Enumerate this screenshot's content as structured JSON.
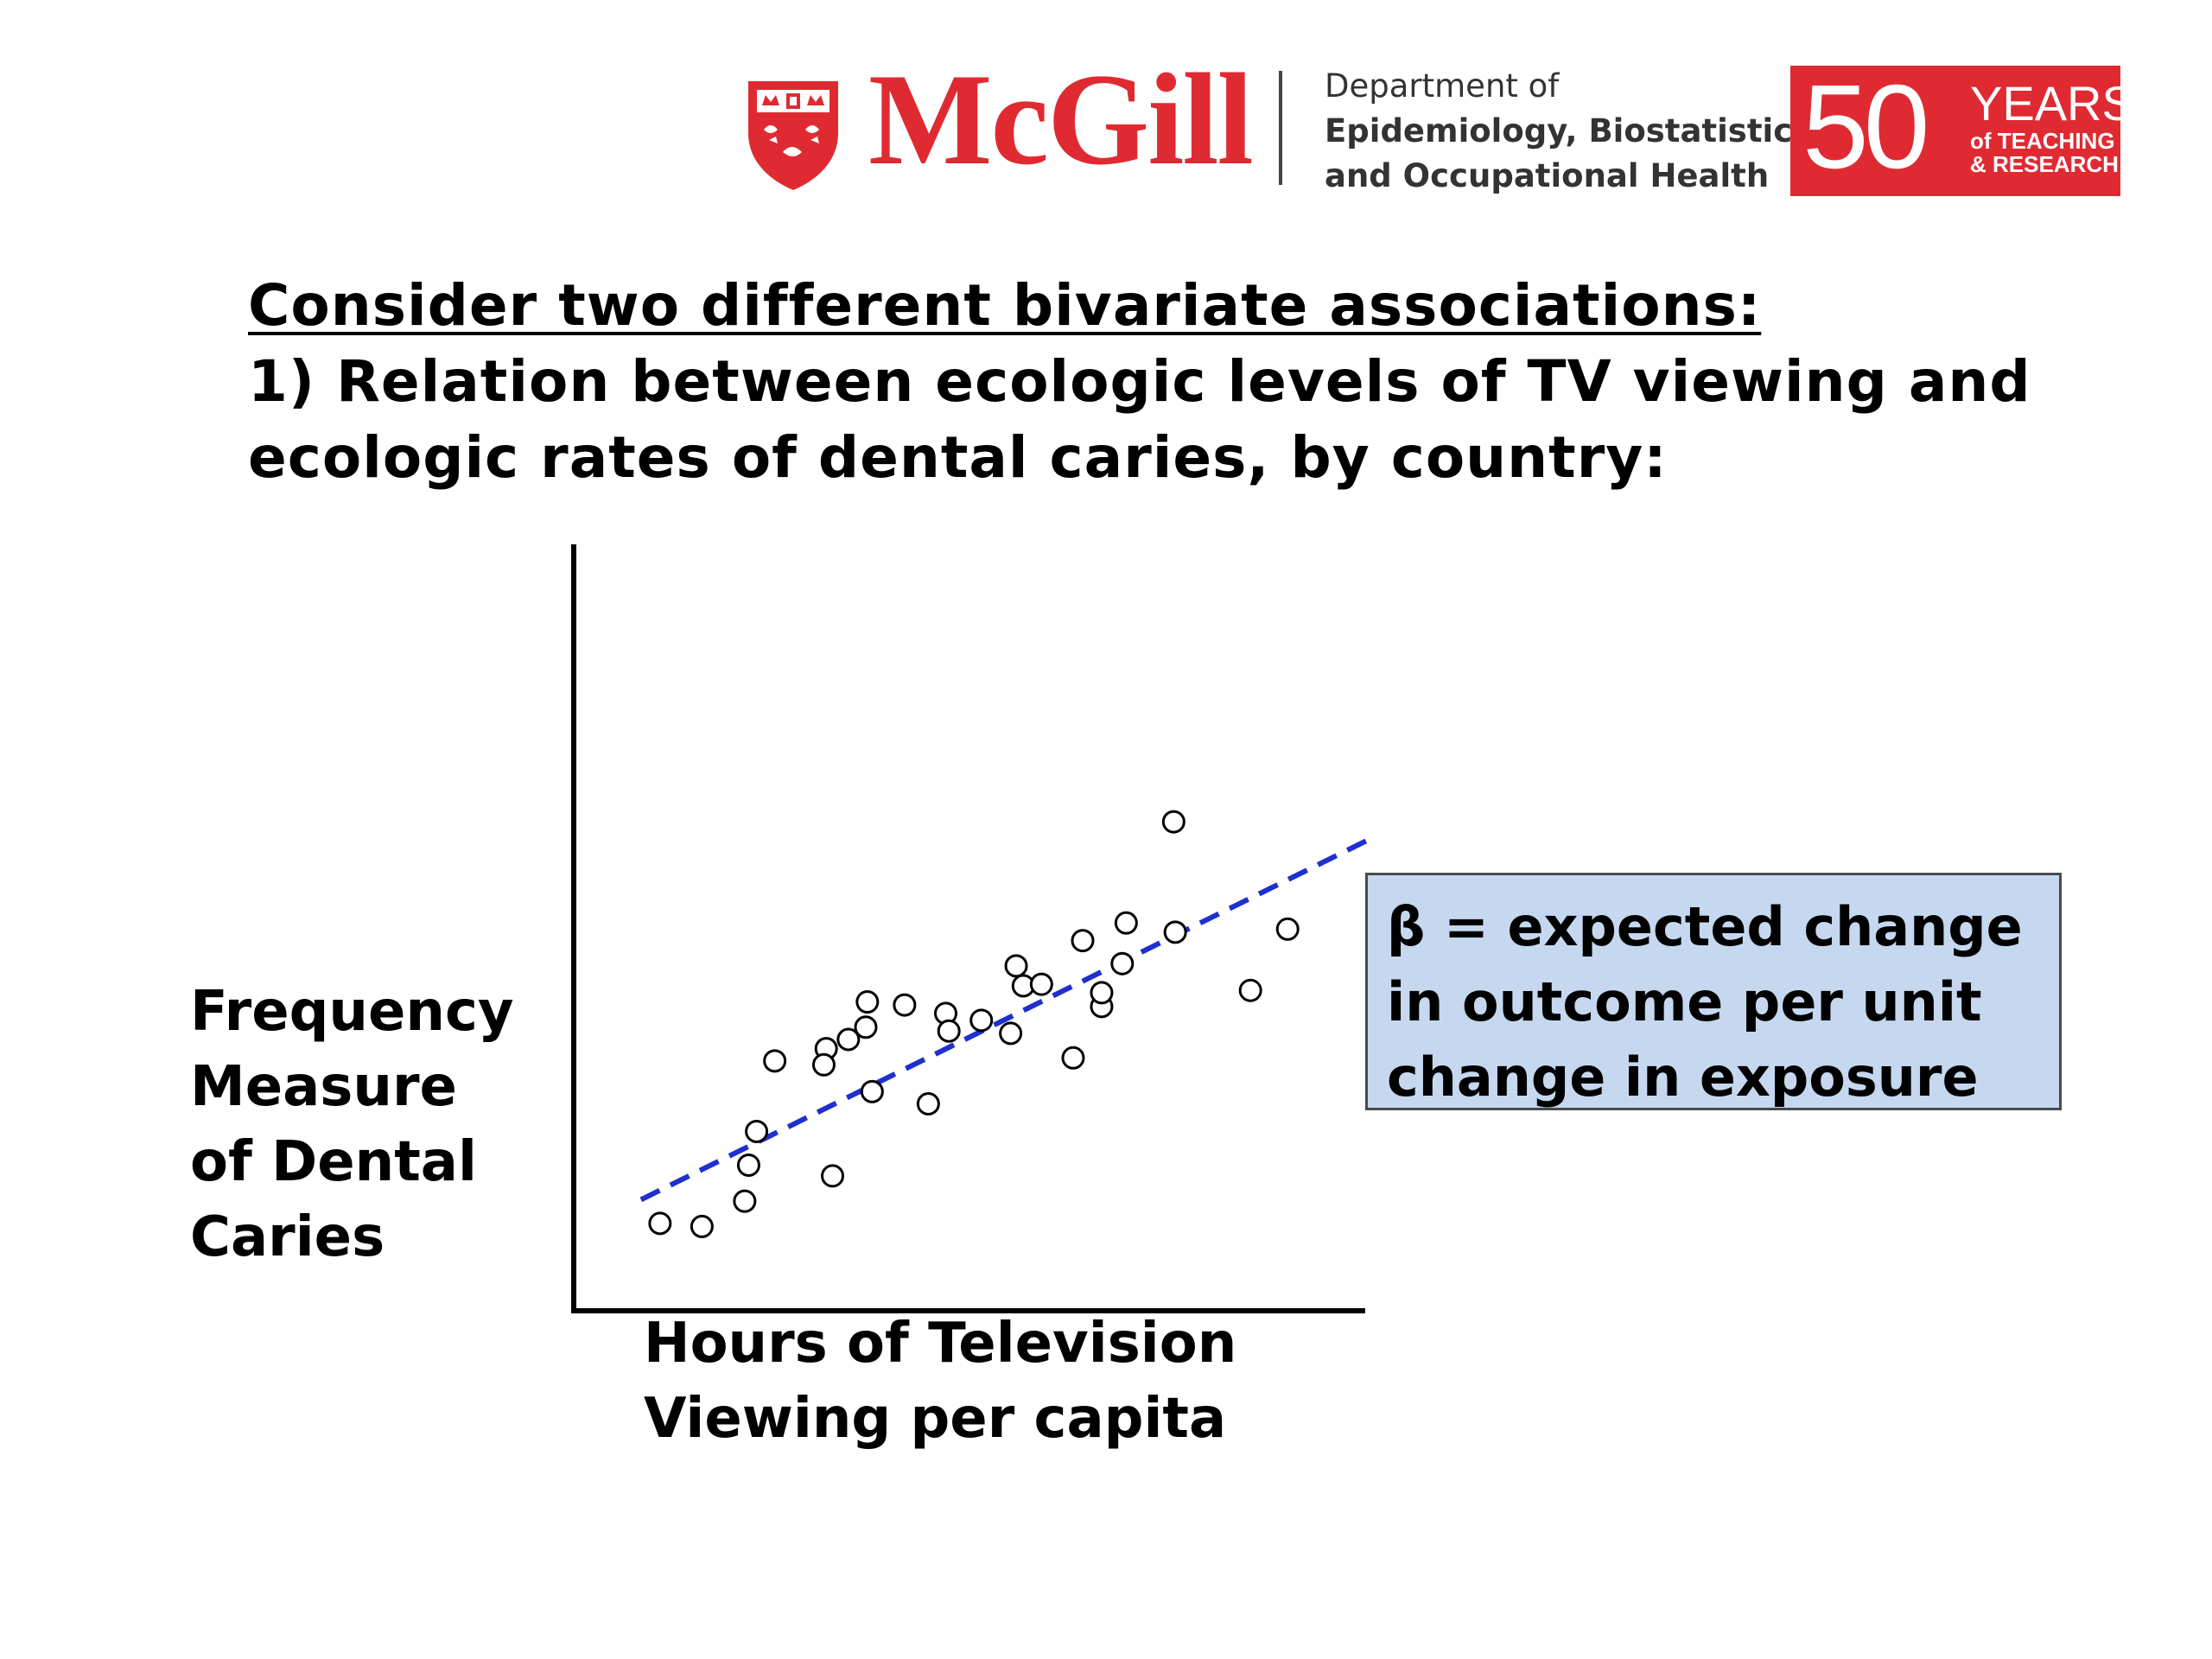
{
  "logos": {
    "university": "McGill",
    "department": [
      "Department of",
      "Epidemiology, Biostatistics",
      "and Occupational Health"
    ],
    "anniversary": {
      "number": "50",
      "line1": "YEARS",
      "line2": "of TEACHING",
      "line3": "& RESEARCH"
    },
    "colors": {
      "brand_red": "#e02a32"
    }
  },
  "intro": {
    "heading": "Consider two different bivariate associations:",
    "line1": "1)  Relation between ecologic levels of TV viewing and",
    "line2": "ecologic rates of dental caries, by country:"
  },
  "note": {
    "line1": "β = expected change",
    "line2": "in outcome per unit",
    "line3": "change in exposure",
    "colors": {
      "fill": "#c6d8ef",
      "border": "#4a4a4a"
    }
  },
  "chart_data": {
    "type": "scatter",
    "xlabel": [
      "Hours of Television",
      "Viewing per capita"
    ],
    "ylabel": [
      "Frequency",
      "Measure",
      "of Dental",
      "Caries"
    ],
    "x_ticks": "none",
    "y_ticks": "none",
    "xlim": [
      0,
      100
    ],
    "ylim": [
      0,
      100
    ],
    "grid": false,
    "legend": "none",
    "point_style": "open circle",
    "trendline": {
      "style": "dashed",
      "color": "#1f2fd0",
      "start": [
        8.5,
        14.5
      ],
      "end": [
        100.5,
        61.5
      ]
    },
    "points": [
      [
        10.9,
        11.4
      ],
      [
        16.2,
        11.0
      ],
      [
        21.6,
        14.3
      ],
      [
        22.1,
        19.0
      ],
      [
        23.1,
        23.4
      ],
      [
        25.4,
        32.6
      ],
      [
        31.9,
        34.2
      ],
      [
        31.6,
        32.1
      ],
      [
        32.7,
        17.6
      ],
      [
        34.7,
        35.4
      ],
      [
        36.9,
        37.0
      ],
      [
        37.7,
        28.6
      ],
      [
        37.1,
        40.3
      ],
      [
        41.8,
        39.9
      ],
      [
        44.8,
        27.0
      ],
      [
        47.0,
        38.8
      ],
      [
        47.4,
        36.5
      ],
      [
        51.5,
        37.9
      ],
      [
        55.2,
        36.2
      ],
      [
        55.9,
        45.0
      ],
      [
        56.8,
        42.4
      ],
      [
        59.1,
        42.6
      ],
      [
        63.1,
        33.0
      ],
      [
        64.3,
        48.3
      ],
      [
        66.7,
        39.7
      ],
      [
        66.7,
        41.5
      ],
      [
        69.3,
        45.3
      ],
      [
        69.8,
        50.6
      ],
      [
        75.8,
        63.8
      ],
      [
        76.0,
        49.4
      ],
      [
        85.5,
        41.8
      ],
      [
        90.2,
        49.8
      ]
    ]
  }
}
